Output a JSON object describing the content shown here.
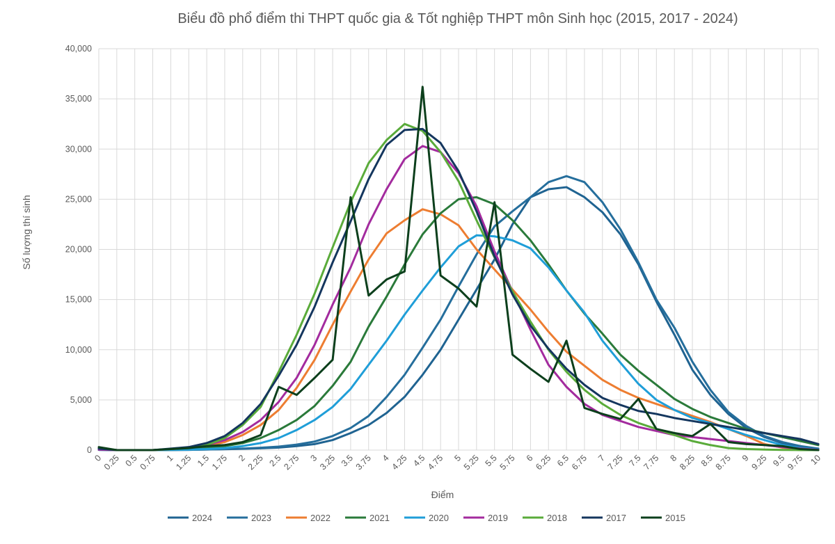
{
  "chart_data": {
    "type": "line",
    "title": "Biểu đồ phổ điểm thi THPT quốc gia & Tốt nghiệp THPT môn Sinh học (2015, 2017 - 2024)",
    "xlabel": "Điểm",
    "ylabel": "Số lượng thí sinh",
    "ylim": [
      0,
      40000
    ],
    "y_ticks": [
      "0",
      "5,000",
      "10,000",
      "15,000",
      "20,000",
      "25,000",
      "30,000",
      "35,000",
      "40,000"
    ],
    "grid": true,
    "legend_position": "bottom",
    "categories": [
      "0",
      "0.25",
      "0.5",
      "0.75",
      "1",
      "1.25",
      "1.5",
      "1.75",
      "2",
      "2.25",
      "2.5",
      "2.75",
      "3",
      "3.25",
      "3.5",
      "3.75",
      "4",
      "4.25",
      "4.5",
      "4.75",
      "5",
      "5.25",
      "5.5",
      "5.75",
      "6",
      "6.25",
      "6.5",
      "6.75",
      "7",
      "7.25",
      "7.5",
      "7.75",
      "8",
      "8.25",
      "8.5",
      "8.75",
      "9",
      "9.25",
      "9.5",
      "9.75",
      "10"
    ],
    "series": [
      {
        "name": "2024",
        "color": "#1f6391",
        "values": [
          30,
          0,
          0,
          0,
          10,
          30,
          60,
          90,
          130,
          180,
          250,
          400,
          600,
          1000,
          1700,
          2500,
          3700,
          5300,
          7500,
          10000,
          13000,
          16000,
          19000,
          22500,
          25200,
          26000,
          26200,
          25200,
          23700,
          21500,
          18500,
          14800,
          11500,
          8000,
          5500,
          3600,
          2200,
          1300,
          700,
          300,
          120
        ]
      },
      {
        "name": "2023",
        "color": "#256e9c",
        "values": [
          30,
          0,
          0,
          0,
          10,
          30,
          60,
          100,
          150,
          230,
          350,
          550,
          850,
          1400,
          2200,
          3400,
          5300,
          7500,
          10200,
          13000,
          16300,
          19500,
          22300,
          23800,
          25200,
          26700,
          27300,
          26700,
          24700,
          22000,
          18700,
          15000,
          12200,
          8800,
          6000,
          3800,
          2400,
          1400,
          800,
          400,
          150
        ]
      },
      {
        "name": "2022",
        "color": "#ed7d31",
        "values": [
          100,
          0,
          0,
          0,
          50,
          150,
          400,
          800,
          1500,
          2500,
          4000,
          6200,
          9000,
          12500,
          15800,
          19000,
          21600,
          22900,
          24000,
          23500,
          22400,
          20000,
          18000,
          16000,
          14000,
          11800,
          9800,
          8400,
          7000,
          6000,
          5200,
          4600,
          4000,
          3400,
          2800,
          2100,
          1400,
          600,
          250,
          100,
          30
        ]
      },
      {
        "name": "2021",
        "color": "#2a7a3a",
        "values": [
          150,
          0,
          0,
          0,
          30,
          80,
          200,
          400,
          700,
          1200,
          2000,
          3000,
          4400,
          6400,
          8800,
          12300,
          15300,
          18500,
          21500,
          23600,
          25000,
          25200,
          24500,
          22900,
          20900,
          18500,
          15900,
          13600,
          11600,
          9500,
          7900,
          6500,
          5100,
          4100,
          3300,
          2700,
          2100,
          1700,
          1300,
          900,
          500
        ]
      },
      {
        "name": "2020",
        "color": "#1f9ed8",
        "values": [
          100,
          0,
          0,
          0,
          20,
          50,
          100,
          200,
          400,
          700,
          1200,
          2000,
          3000,
          4300,
          6100,
          8500,
          10900,
          13500,
          15900,
          18200,
          20300,
          21400,
          21300,
          20900,
          20100,
          18200,
          15900,
          13700,
          10900,
          8700,
          6600,
          5000,
          4000,
          3200,
          2700,
          2100,
          1500,
          1000,
          500,
          200,
          50
        ]
      },
      {
        "name": "2019",
        "color": "#a32b9e",
        "values": [
          50,
          0,
          0,
          0,
          100,
          250,
          500,
          1000,
          1800,
          3000,
          4800,
          7200,
          10500,
          14500,
          18200,
          22500,
          26000,
          29000,
          30300,
          29700,
          27600,
          24300,
          19800,
          15800,
          12000,
          8500,
          6300,
          4600,
          3500,
          2900,
          2300,
          1900,
          1500,
          1300,
          1100,
          900,
          700,
          500,
          300,
          150,
          30
        ]
      },
      {
        "name": "2018",
        "color": "#5aab3a",
        "values": [
          200,
          0,
          0,
          0,
          100,
          200,
          500,
          1200,
          2500,
          4300,
          7800,
          11500,
          15600,
          20200,
          24700,
          28600,
          30900,
          32500,
          31800,
          29700,
          26800,
          22900,
          19200,
          15800,
          12800,
          10000,
          7800,
          6000,
          4600,
          3500,
          2700,
          2100,
          1500,
          900,
          500,
          200,
          100,
          50,
          20,
          0,
          0
        ]
      },
      {
        "name": "2017",
        "color": "#14365e",
        "values": [
          150,
          0,
          0,
          0,
          150,
          300,
          700,
          1400,
          2700,
          4600,
          7400,
          10500,
          14300,
          18700,
          22800,
          27000,
          30400,
          31900,
          32000,
          30600,
          27800,
          23800,
          19300,
          15500,
          12400,
          10100,
          8100,
          6500,
          5200,
          4500,
          3900,
          3600,
          3200,
          2900,
          2600,
          2300,
          2000,
          1700,
          1400,
          1100,
          600
        ]
      },
      {
        "name": "2015",
        "color": "#0c3f1c",
        "values": [
          300,
          0,
          0,
          0,
          100,
          200,
          400,
          500,
          800,
          1500,
          6300,
          5500,
          7200,
          9000,
          25200,
          15400,
          17000,
          17800,
          36200,
          17400,
          16100,
          14300,
          24700,
          9500,
          8100,
          6800,
          10900,
          4200,
          3600,
          3100,
          5100,
          2100,
          1700,
          1400,
          2600,
          800,
          600,
          500,
          400,
          100,
          0
        ]
      }
    ]
  }
}
